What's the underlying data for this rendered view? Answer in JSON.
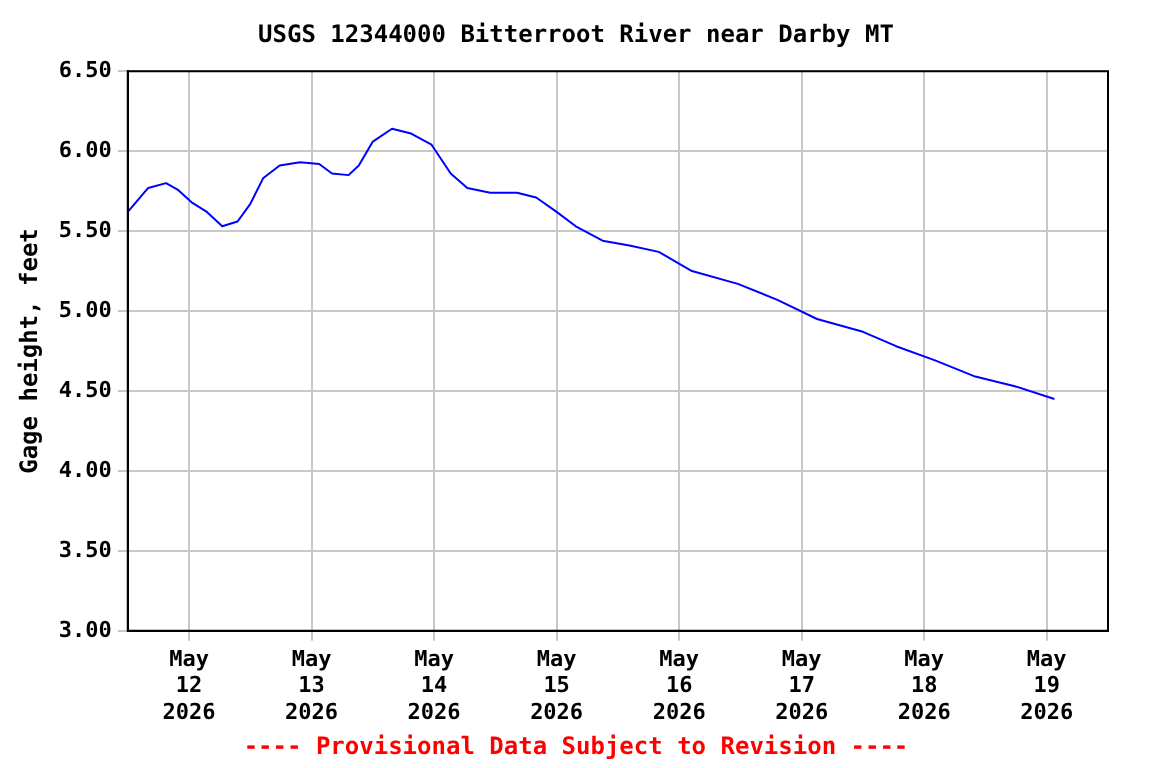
{
  "chart_data": {
    "type": "line",
    "title": "USGS 12344000 Bitterroot River near Darby MT",
    "ylabel": "Gage height, feet",
    "annotations": [
      "---- Provisional Data Subject to Revision ----"
    ],
    "x": [
      "2026-05-11T12:00",
      "2026-05-11T16:00",
      "2026-05-11T19:30",
      "2026-05-11T21:45",
      "2026-05-12T00:30",
      "2026-05-12T03:30",
      "2026-05-12T06:30",
      "2026-05-12T09:30",
      "2026-05-12T12:00",
      "2026-05-12T14:30",
      "2026-05-12T17:45",
      "2026-05-12T21:45",
      "2026-05-13T01:30",
      "2026-05-13T04:00",
      "2026-05-13T07:15",
      "2026-05-13T09:15",
      "2026-05-13T12:00",
      "2026-05-13T15:45",
      "2026-05-13T19:30",
      "2026-05-13T23:30",
      "2026-05-14T03:15",
      "2026-05-14T06:30",
      "2026-05-14T11:00",
      "2026-05-14T16:15",
      "2026-05-14T20:00",
      "2026-05-15T00:00",
      "2026-05-15T03:45",
      "2026-05-15T09:00",
      "2026-05-15T14:15",
      "2026-05-15T20:00",
      "2026-05-16T02:30",
      "2026-05-16T11:30",
      "2026-05-16T19:15",
      "2026-05-17T03:00",
      "2026-05-17T12:00",
      "2026-05-17T18:30",
      "2026-05-18T02:15",
      "2026-05-18T10:00",
      "2026-05-18T17:45",
      "2026-05-19T01:30"
    ],
    "series": [
      {
        "color": "#0000ff",
        "values": [
          5.62,
          5.77,
          5.8,
          5.76,
          5.68,
          5.62,
          5.53,
          5.56,
          5.67,
          5.83,
          5.91,
          5.93,
          5.92,
          5.86,
          5.85,
          5.91,
          6.06,
          6.14,
          6.11,
          6.04,
          5.86,
          5.77,
          5.74,
          5.74,
          5.71,
          5.62,
          5.53,
          5.44,
          5.41,
          5.37,
          5.25,
          5.17,
          5.07,
          4.95,
          4.87,
          4.78,
          4.69,
          4.59,
          4.53,
          4.45
        ]
      }
    ],
    "xlim": [
      "2026-05-11T12:00",
      "2026-05-19T12:00"
    ],
    "xticks": [
      {
        "value": "2026-05-12",
        "label": "May 12 2026"
      },
      {
        "value": "2026-05-13",
        "label": "May 13 2026"
      },
      {
        "value": "2026-05-14",
        "label": "May 14 2026"
      },
      {
        "value": "2026-05-15",
        "label": "May 15 2026"
      },
      {
        "value": "2026-05-16",
        "label": "May 16 2026"
      },
      {
        "value": "2026-05-17",
        "label": "May 17 2026"
      },
      {
        "value": "2026-05-18",
        "label": "May 18 2026"
      },
      {
        "value": "2026-05-19",
        "label": "May 19 2026"
      }
    ],
    "ylim": [
      3,
      6.5
    ],
    "yticks": [
      {
        "value": 3,
        "label": "3.00"
      },
      {
        "value": 3.5,
        "label": "3.50"
      },
      {
        "value": 4,
        "label": "4.00"
      },
      {
        "value": 4.5,
        "label": "4.50"
      },
      {
        "value": 5,
        "label": "5.00"
      },
      {
        "value": 5.5,
        "label": "5.50"
      },
      {
        "value": 6,
        "label": "6.00"
      },
      {
        "value": 6.5,
        "label": "6.50"
      }
    ],
    "grid": true,
    "legend": false,
    "marker": "none",
    "line_style": "solid"
  }
}
